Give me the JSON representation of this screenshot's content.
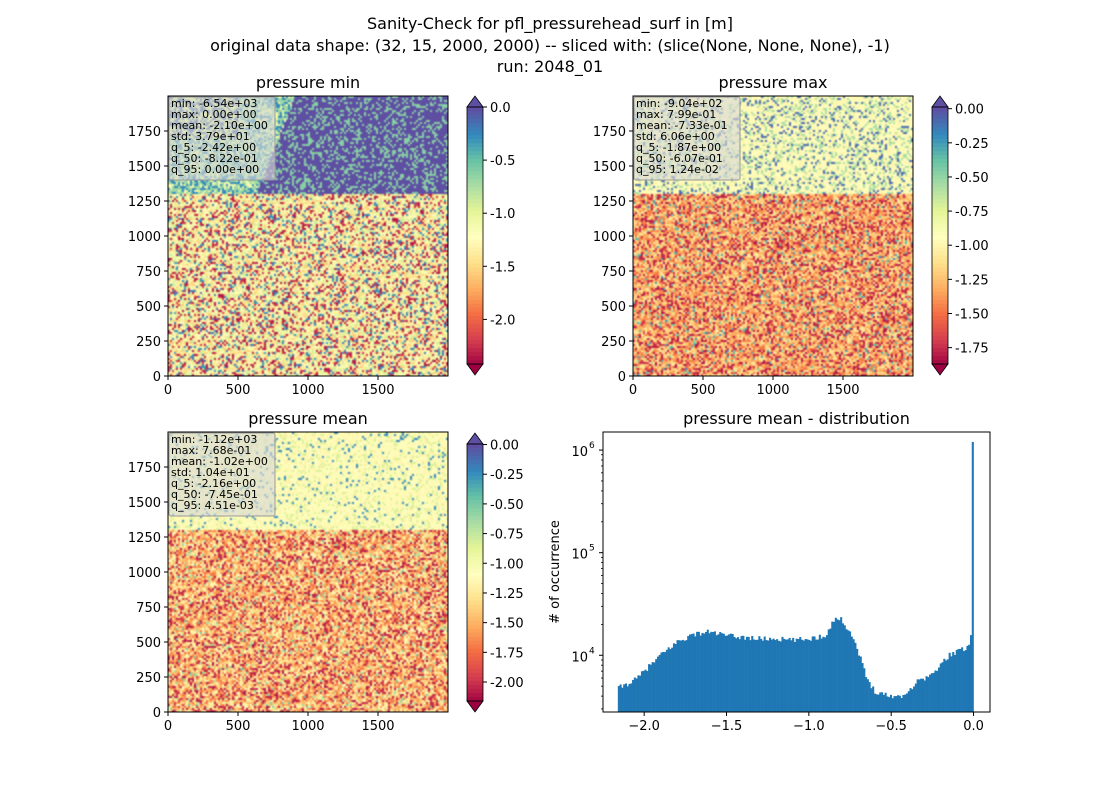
{
  "suptitle": {
    "line1": "Sanity-Check for pfl_pressurehead_surf in [m]",
    "line2": "original data shape: (32, 15, 2000, 2000) -- sliced with: (slice(None, None, None), -1)",
    "line3": "run: 2048_01"
  },
  "colors": {
    "spectral": [
      "#9e0142",
      "#d53e4f",
      "#f46d43",
      "#fdae61",
      "#fee08b",
      "#ffffbf",
      "#e6f598",
      "#abdda4",
      "#66c2a5",
      "#3288bd",
      "#5e4fa2"
    ],
    "hist_bar": "#1f77b4",
    "stats_box_bg": "#d9d9d9"
  },
  "chart_data": [
    {
      "type": "heatmap",
      "title": "pressure min",
      "colormap": "Spectral",
      "xlim": [
        0,
        2000
      ],
      "ylim": [
        0,
        2000
      ],
      "xticks": [
        "0",
        "500",
        "1000",
        "1500"
      ],
      "yticks": [
        "0",
        "250",
        "500",
        "750",
        "1000",
        "1250",
        "1500",
        "1750"
      ],
      "stats": [
        "min: -6.54e+03",
        "max: 0.00e+00",
        "mean: -2.10e+00",
        "std: 3.79e+01",
        "q_5: -2.42e+00",
        "q_50: -8.22e-01",
        "q_95: 0.00e+00"
      ],
      "colorbar": {
        "vmin": -2.42,
        "vmax": 0.0,
        "ticks": [
          "0.0",
          "-0.5",
          "-1.0",
          "-1.5",
          "-2.0"
        ],
        "tick_values": [
          0.0,
          -0.5,
          -1.0,
          -1.5,
          -2.0
        ],
        "extend": "both"
      }
    },
    {
      "type": "heatmap",
      "title": "pressure max",
      "colormap": "Spectral",
      "xlim": [
        0,
        2000
      ],
      "ylim": [
        0,
        2000
      ],
      "xticks": [
        "0",
        "500",
        "1000",
        "1500"
      ],
      "yticks": [
        "0",
        "250",
        "500",
        "750",
        "1000",
        "1250",
        "1500",
        "1750"
      ],
      "stats": [
        "min: -9.04e+02",
        "max: 7.99e-01",
        "mean: -7.33e-01",
        "std: 6.06e+00",
        "q_5: -1.87e+00",
        "q_50: -6.07e-01",
        "q_95: 1.24e-02"
      ],
      "colorbar": {
        "vmin": -1.87,
        "vmax": 0.0124,
        "ticks": [
          "0.00",
          "-0.25",
          "-0.50",
          "-0.75",
          "-1.00",
          "-1.25",
          "-1.50",
          "-1.75"
        ],
        "tick_values": [
          0.0,
          -0.25,
          -0.5,
          -0.75,
          -1.0,
          -1.25,
          -1.5,
          -1.75
        ],
        "extend": "both"
      }
    },
    {
      "type": "heatmap",
      "title": "pressure mean",
      "colormap": "Spectral",
      "xlim": [
        0,
        2000
      ],
      "ylim": [
        0,
        2000
      ],
      "xticks": [
        "0",
        "500",
        "1000",
        "1500"
      ],
      "yticks": [
        "0",
        "250",
        "500",
        "750",
        "1000",
        "1250",
        "1500",
        "1750"
      ],
      "stats": [
        "min: -1.12e+03",
        "max: 7.68e-01",
        "mean: -1.02e+00",
        "std: 1.04e+01",
        "q_5: -2.16e+00",
        "q_50: -7.45e-01",
        "q_95: 4.51e-03"
      ],
      "colorbar": {
        "vmin": -2.16,
        "vmax": 0.0045,
        "ticks": [
          "0.00",
          "-0.25",
          "-0.50",
          "-0.75",
          "-1.00",
          "-1.25",
          "-1.50",
          "-1.75",
          "-2.00"
        ],
        "tick_values": [
          0.0,
          -0.25,
          -0.5,
          -0.75,
          -1.0,
          -1.25,
          -1.5,
          -1.75,
          -2.0
        ],
        "extend": "both"
      }
    },
    {
      "type": "bar",
      "title": "pressure mean - distribution",
      "ylabel": "# of occurrence",
      "yscale": "log",
      "xlim": [
        -2.25,
        0.1
      ],
      "ylim": [
        2800,
        1500000
      ],
      "xticks": [
        "−2.0",
        "−1.5",
        "−1.0",
        "−0.5",
        "0.0"
      ],
      "xtick_values": [
        -2.0,
        -1.5,
        -1.0,
        -0.5,
        0.0
      ],
      "yticks": [
        "10",
        "10",
        "10"
      ],
      "ytick_exponents": [
        "4",
        "5",
        "6"
      ],
      "ytick_values": [
        10000,
        100000,
        1000000
      ],
      "bins_range": [
        -2.16,
        0.0
      ],
      "profile_x": [
        -2.16,
        -2.13,
        -2.1,
        -2.05,
        -2.0,
        -1.9,
        -1.8,
        -1.7,
        -1.6,
        -1.5,
        -1.4,
        -1.3,
        -1.2,
        -1.1,
        -1.0,
        -0.9,
        -0.85,
        -0.82,
        -0.8,
        -0.75,
        -0.7,
        -0.65,
        -0.6,
        -0.55,
        -0.5,
        -0.45,
        -0.4,
        -0.35,
        -0.3,
        -0.25,
        -0.2,
        -0.15,
        -0.1,
        -0.05,
        -0.02,
        -0.01,
        0.0
      ],
      "profile_y": [
        4800,
        5000,
        5300,
        5800,
        7000,
        10000,
        13500,
        16000,
        17000,
        15500,
        15000,
        14500,
        14500,
        14000,
        14500,
        15500,
        22000,
        23000,
        22000,
        17000,
        11000,
        6000,
        4500,
        4200,
        4000,
        4000,
        4300,
        5500,
        6000,
        6500,
        8000,
        10000,
        11000,
        11500,
        14000,
        22000,
        1200000
      ]
    }
  ]
}
